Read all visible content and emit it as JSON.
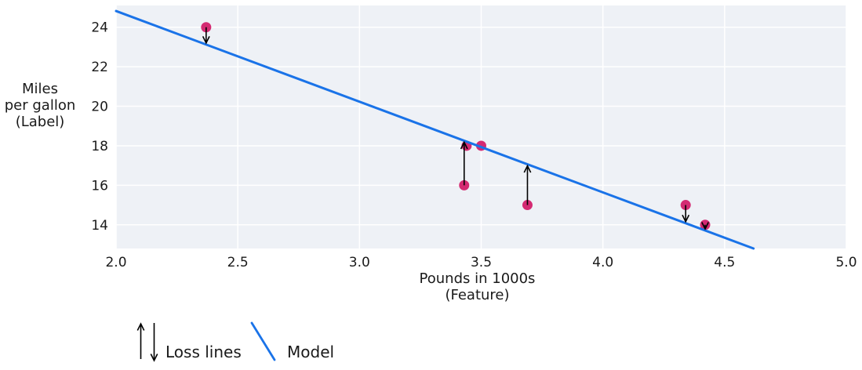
{
  "chart_data": {
    "type": "scatter",
    "title": "",
    "xlabel_lines": [
      "Pounds in 1000s",
      "(Feature)"
    ],
    "ylabel_lines": [
      "Miles",
      "per gallon",
      "(Label)"
    ],
    "xlim": [
      2.0,
      5.0
    ],
    "ylim": [
      12.8,
      25.1
    ],
    "grid": true,
    "legend_position": "bottom-left",
    "x_ticks": [
      {
        "label": "2.0",
        "v": 2.0
      },
      {
        "label": "2.5",
        "v": 2.5
      },
      {
        "label": "3.0",
        "v": 3.0
      },
      {
        "label": "3.5",
        "v": 3.5
      },
      {
        "label": "4.0",
        "v": 4.0
      },
      {
        "label": "4.5",
        "v": 4.5
      },
      {
        "label": "5.0",
        "v": 5.0
      }
    ],
    "y_ticks": [
      {
        "label": "14",
        "v": 14
      },
      {
        "label": "16",
        "v": 16
      },
      {
        "label": "18",
        "v": 18
      },
      {
        "label": "20",
        "v": 20
      },
      {
        "label": "22",
        "v": 22
      },
      {
        "label": "24",
        "v": 24
      }
    ],
    "points": [
      {
        "x": 2.37,
        "y": 24,
        "loss_arrow": true
      },
      {
        "x": 3.44,
        "y": 18,
        "loss_arrow": false
      },
      {
        "x": 3.5,
        "y": 18,
        "loss_arrow": false
      },
      {
        "x": 3.43,
        "y": 16,
        "loss_arrow": true
      },
      {
        "x": 3.69,
        "y": 15,
        "loss_arrow": true
      },
      {
        "x": 4.34,
        "y": 15,
        "loss_arrow": true
      },
      {
        "x": 4.42,
        "y": 14,
        "loss_arrow": true
      }
    ],
    "model": {
      "slope": -4.59,
      "intercept": 34.0
    },
    "legend": [
      {
        "label": "Loss lines",
        "symbol": "updown-arrows"
      },
      {
        "label": "Model",
        "symbol": "line-segment"
      }
    ],
    "colors": {
      "point": "#d42a72",
      "model_line": "#1a73e8",
      "plot_bg": "#eef1f6",
      "grid_line": "#ffffff",
      "arrow": "#000000",
      "text": "#1a1a1a"
    }
  }
}
